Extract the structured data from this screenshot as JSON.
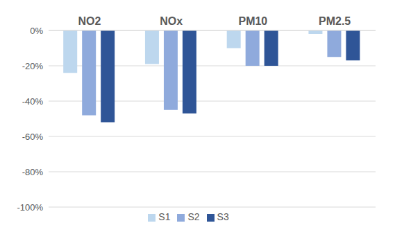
{
  "chart_data": {
    "type": "bar",
    "categories": [
      "NO2",
      "NOx",
      "PM10",
      "PM2.5"
    ],
    "series": [
      {
        "name": "S1",
        "color": "#bdd7ee",
        "values": [
          -24,
          -19,
          -10,
          -2
        ]
      },
      {
        "name": "S2",
        "color": "#8faadc",
        "values": [
          -48,
          -45,
          -20,
          -15
        ]
      },
      {
        "name": "S3",
        "color": "#2f5597",
        "values": [
          -52,
          -47,
          -20,
          -17
        ]
      }
    ],
    "ylim": [
      -100,
      0
    ],
    "yticks": [
      {
        "value": 0,
        "label": "0%"
      },
      {
        "value": -20,
        "label": "-20%"
      },
      {
        "value": -40,
        "label": "-40%"
      },
      {
        "value": -60,
        "label": "-60%"
      },
      {
        "value": -80,
        "label": "-80%"
      },
      {
        "value": -100,
        "label": "-100%"
      }
    ],
    "grid": true,
    "legend": "bottom"
  }
}
